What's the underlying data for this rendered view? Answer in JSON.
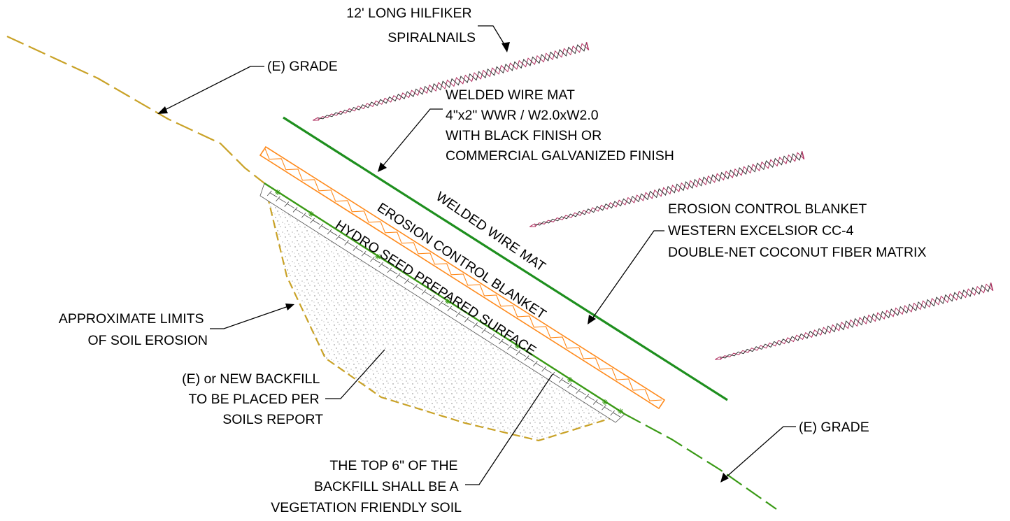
{
  "colors": {
    "grade": "#c9a227",
    "grade_new": "#3a9a16",
    "wire_mat": "#1e8f1e",
    "blanket": "#ff8a1c",
    "nail": "#b03060",
    "text": "#000000"
  },
  "labels": {
    "nails": [
      "12' LONG HILFIKER",
      "SPIRALNAILS"
    ],
    "grade_upper": "(E) GRADE",
    "grade_lower": "(E) GRADE",
    "wire_mat_note": [
      "WELDED WIRE MAT",
      "4\"x2\" WWR / W2.0xW2.0",
      "WITH BLACK FINISH OR",
      "COMMERCIAL GALVANIZED FINISH"
    ],
    "blanket_note": [
      "EROSION CONTROL BLANKET",
      "WESTERN EXCELSIOR CC-4",
      "DOUBLE-NET COCONUT FIBER MATRIX"
    ],
    "erosion_limits": [
      "APPROXIMATE LIMITS",
      "OF SOIL EROSION"
    ],
    "backfill": [
      "(E) or NEW BACKFILL",
      "TO BE PLACED PER",
      "SOILS REPORT"
    ],
    "topsoil": [
      "THE TOP 6\" OF THE",
      "BACKFILL SHALL BE A",
      "VEGETATION FRIENDLY SOIL"
    ],
    "along_mat": "WELDED WIRE MAT",
    "along_blanket": "EROSION CONTROL BLANKET",
    "along_seed": "HYDRO SEED PREPARED SURFACE"
  }
}
